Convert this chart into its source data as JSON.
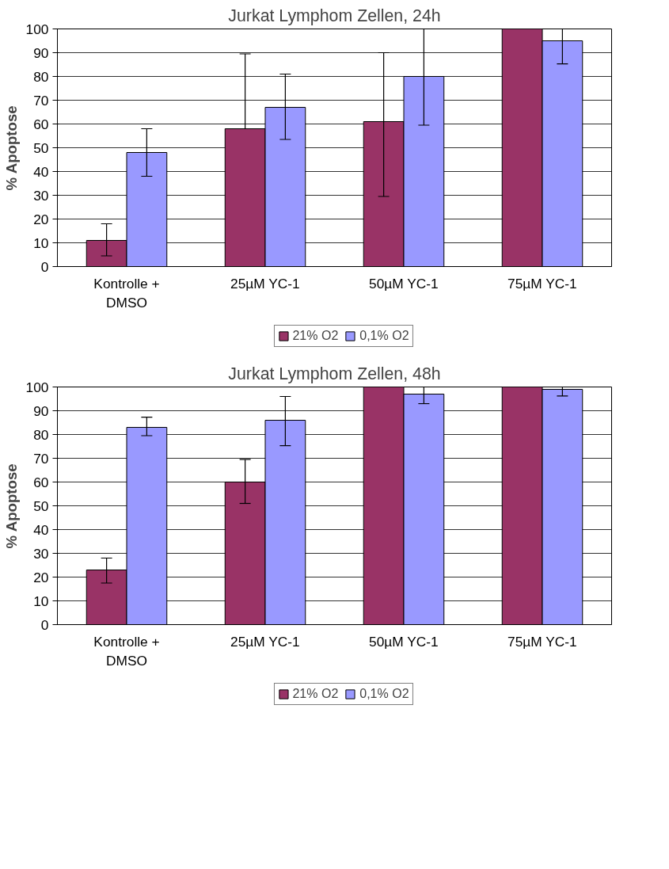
{
  "chart_data": [
    {
      "type": "bar",
      "title": "Jurkat Lymphom Zellen, 24h",
      "ylabel": "% Apoptose",
      "categories": [
        "Kontrolle + DMSO",
        "25µM YC-1",
        "50µM YC-1",
        "75µM YC-1"
      ],
      "ylim": [
        0,
        100
      ],
      "yticks": [
        0,
        10,
        20,
        30,
        40,
        50,
        60,
        70,
        80,
        90,
        100
      ],
      "grid": "y",
      "legend": "bottom",
      "series": [
        {
          "name": "21% O2",
          "color": "#993366",
          "values": [
            11,
            58,
            61,
            100
          ],
          "errors": [
            [
              4.5,
              18
            ],
            [
              58,
              89.5
            ],
            [
              29.5,
              90
            ],
            null
          ]
        },
        {
          "name": "0,1% O2",
          "color": "#9999ff",
          "values": [
            48,
            67,
            80,
            95
          ],
          "errors": [
            [
              38,
              58
            ],
            [
              53.5,
              81
            ],
            [
              59.5,
              100
            ],
            [
              85.3,
              100
            ]
          ]
        }
      ]
    },
    {
      "type": "bar",
      "title": "Jurkat Lymphom Zellen, 48h",
      "ylabel": "% Apoptose",
      "categories": [
        "Kontrolle + DMSO",
        "25µM YC-1",
        "50µM YC-1",
        "75µM YC-1"
      ],
      "ylim": [
        0,
        100
      ],
      "yticks": [
        0,
        10,
        20,
        30,
        40,
        50,
        60,
        70,
        80,
        90,
        100
      ],
      "grid": "y",
      "legend": "bottom",
      "series": [
        {
          "name": "21% O2",
          "color": "#993366",
          "values": [
            23,
            60,
            100,
            100
          ],
          "errors": [
            [
              17.5,
              28
            ],
            [
              51,
              69.5
            ],
            null,
            null
          ]
        },
        {
          "name": "0,1% O2",
          "color": "#9999ff",
          "values": [
            83,
            86,
            97,
            99
          ],
          "errors": [
            [
              79.5,
              87.3
            ],
            [
              75.3,
              96
            ],
            [
              93,
              100
            ],
            [
              96.2,
              100
            ]
          ]
        }
      ]
    }
  ]
}
